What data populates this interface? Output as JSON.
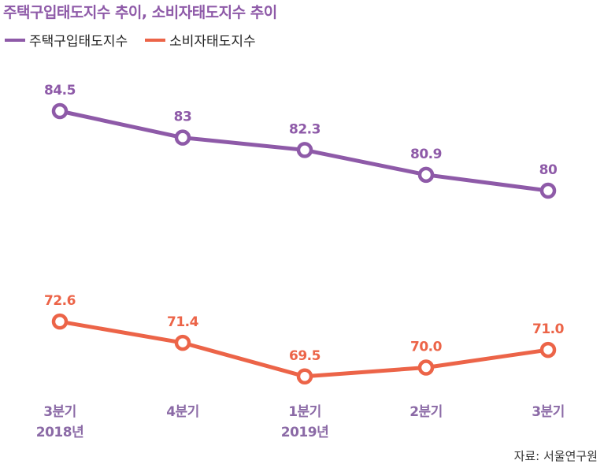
{
  "title": "주택구입태도지수 추이, 소비자태도지수 추이",
  "source": "자료: 서울연구원",
  "chart_data": {
    "type": "line",
    "categories": [
      "3분기\n2018년",
      "4분기",
      "1분기\n2019년",
      "2분기",
      "3분기"
    ],
    "series": [
      {
        "name": "주택구입태도지수",
        "color": "#8e5aa8",
        "values": [
          84.5,
          83,
          82.3,
          80.9,
          80
        ],
        "labels": [
          "84.5",
          "83",
          "82.3",
          "80.9",
          "80"
        ]
      },
      {
        "name": "소비자태도지수",
        "color": "#ec6448",
        "values": [
          72.6,
          71.4,
          69.5,
          70.0,
          71.0
        ],
        "labels": [
          "72.6",
          "71.4",
          "69.5",
          "70.0",
          "71.0"
        ]
      }
    ],
    "legend_position": "top-left",
    "grid": false
  }
}
